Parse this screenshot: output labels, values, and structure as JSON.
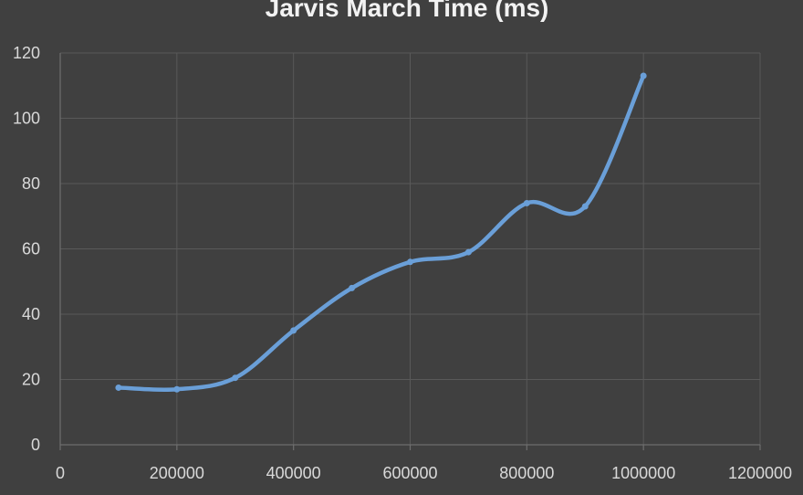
{
  "chart_data": {
    "type": "line",
    "title": "Jarvis March Time (ms)",
    "xlabel": "",
    "ylabel": "",
    "xlim": [
      0,
      1200000
    ],
    "ylim": [
      0,
      120
    ],
    "xticks": [
      0,
      200000,
      400000,
      600000,
      800000,
      1000000,
      1200000
    ],
    "yticks": [
      0,
      20,
      40,
      60,
      80,
      100,
      120
    ],
    "grid": true,
    "smooth": true,
    "series": [
      {
        "color": "#6a9fd8",
        "x": [
          100000,
          200000,
          300000,
          400000,
          500000,
          600000,
          700000,
          800000,
          900000,
          1000000
        ],
        "y": [
          17.5,
          17,
          20.5,
          35,
          48,
          56,
          59,
          74,
          73,
          113
        ]
      }
    ]
  }
}
